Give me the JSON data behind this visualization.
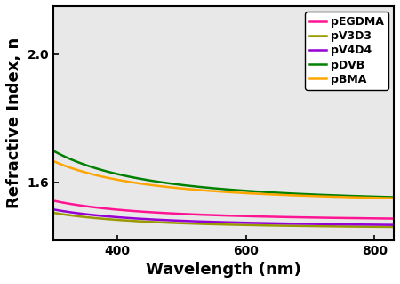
{
  "xlabel": "Wavelength (nm)",
  "ylabel": "Refractive Index, n",
  "xlim": [
    300,
    830
  ],
  "ylim": [
    1.42,
    2.15
  ],
  "yticks": [
    1.6,
    2.0
  ],
  "xticks": [
    400,
    600,
    800
  ],
  "cauchy_params": {
    "pEGDMA": {
      "A": 1.4785,
      "B": 5800,
      "color": "#FF1493"
    },
    "pV3D3": {
      "A": 1.454,
      "B": 4600,
      "color": "#999900"
    },
    "pV4D4": {
      "A": 1.46,
      "B": 5000,
      "color": "#9400D3"
    },
    "pDVB": {
      "A": 1.532,
      "B": 15000,
      "color": "#008000"
    },
    "pBMA": {
      "A": 1.533,
      "B": 12000,
      "color": "#FFA500"
    }
  },
  "labels_order": [
    "pEGDMA",
    "pV3D3",
    "pV4D4",
    "pDVB",
    "pBMA"
  ],
  "legend_fontsize": 9,
  "axis_label_fontsize": 13,
  "tick_label_fontsize": 10,
  "linewidth": 1.8,
  "axes_bg_color": "#e8e8e8",
  "fig_bg_color": "#ffffff"
}
